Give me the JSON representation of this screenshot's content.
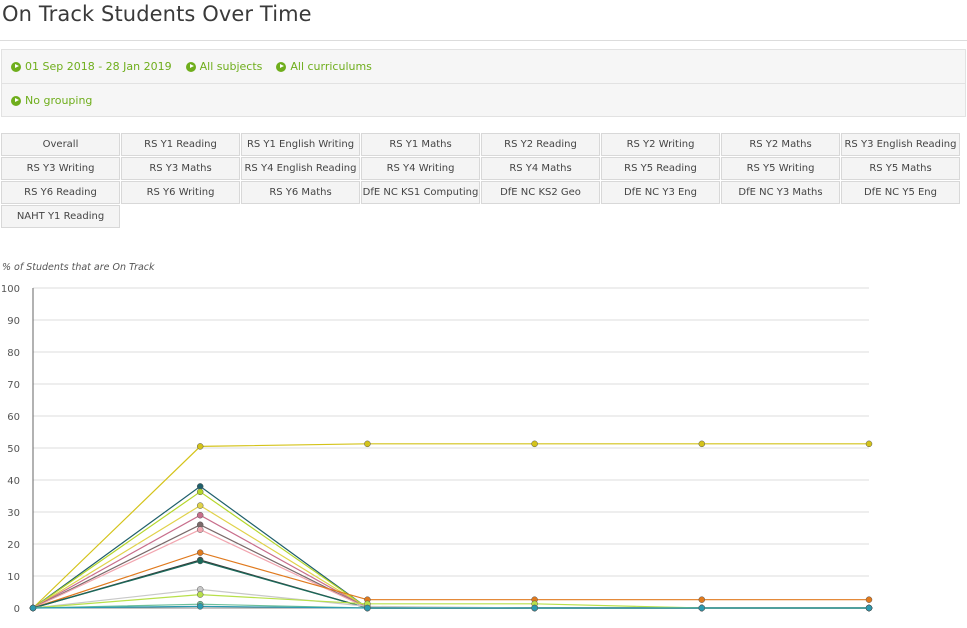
{
  "page": {
    "title": "On Track Students Over Time"
  },
  "filters": {
    "date_range": "01 Sep 2018 - 28 Jan 2019",
    "subjects": "All subjects",
    "curriculums": "All curriculums",
    "grouping": "No grouping",
    "icon": "play-circle-icon",
    "accent_color": "#6fae1c"
  },
  "tabs": [
    "Overall",
    "RS Y1 Reading",
    "RS Y1 English Writing",
    "RS Y1 Maths",
    "RS Y2 Reading",
    "RS Y2 Writing",
    "RS Y2 Maths",
    "RS Y3 English Reading",
    "RS Y3 Writing",
    "RS Y3 Maths",
    "RS Y4 English Reading",
    "RS Y4 Writing",
    "RS Y4 Maths",
    "RS Y5 Reading",
    "RS Y5 Writing",
    "RS Y5 Maths",
    "RS Y6 Reading",
    "RS Y6 Writing",
    "RS Y6 Maths",
    "DfE NC KS1 Computing",
    "DfE NC KS2 Geo",
    "DfE NC Y3 Eng",
    "DfE NC Y3 Maths",
    "DfE NC Y5 Eng",
    "NAHT Y1 Reading"
  ],
  "chart_data": {
    "type": "line",
    "ylabel": "% of Students that are On Track",
    "ylim": [
      0,
      100
    ],
    "yticks": [
      0,
      10,
      20,
      30,
      40,
      50,
      60,
      70,
      80,
      90,
      100
    ],
    "grid": true,
    "x_points": 6,
    "series": [
      {
        "color": "#d4c31a",
        "values": [
          0,
          50.5,
          51.3,
          51.3,
          51.3,
          51.3
        ]
      },
      {
        "color": "#1f5f6b",
        "values": [
          0,
          38,
          0,
          0,
          0,
          0
        ]
      },
      {
        "color": "#b5d62a",
        "values": [
          0,
          36.3,
          0,
          0,
          0,
          0
        ]
      },
      {
        "color": "#e0d24a",
        "values": [
          0,
          32,
          0,
          0,
          0,
          0
        ]
      },
      {
        "color": "#c86e8c",
        "values": [
          0,
          29,
          0,
          0,
          0,
          0
        ]
      },
      {
        "color": "#7a6a6a",
        "values": [
          0,
          26,
          0,
          0,
          0,
          0
        ]
      },
      {
        "color": "#f2a6b0",
        "values": [
          0,
          24.5,
          0,
          0,
          0,
          0
        ]
      },
      {
        "color": "#e07a1e",
        "values": [
          0,
          17.3,
          2.6,
          2.6,
          2.6,
          2.6
        ]
      },
      {
        "color": "#3a3a3a",
        "values": [
          0,
          15,
          0,
          0,
          0,
          0
        ]
      },
      {
        "color": "#1a6a5a",
        "values": [
          0,
          14.7,
          0,
          0,
          0,
          0
        ]
      },
      {
        "color": "#c8c8c8",
        "values": [
          0,
          5.8,
          0.5,
          0,
          0,
          0
        ]
      },
      {
        "color": "#b8e04a",
        "values": [
          0,
          4.2,
          1.3,
          1.3,
          0,
          0
        ]
      },
      {
        "color": "#6fbf9a",
        "values": [
          0,
          1.2,
          0,
          0,
          0,
          0
        ]
      },
      {
        "color": "#2a9ab0",
        "values": [
          0,
          0.5,
          0,
          0,
          0,
          0
        ]
      }
    ]
  }
}
